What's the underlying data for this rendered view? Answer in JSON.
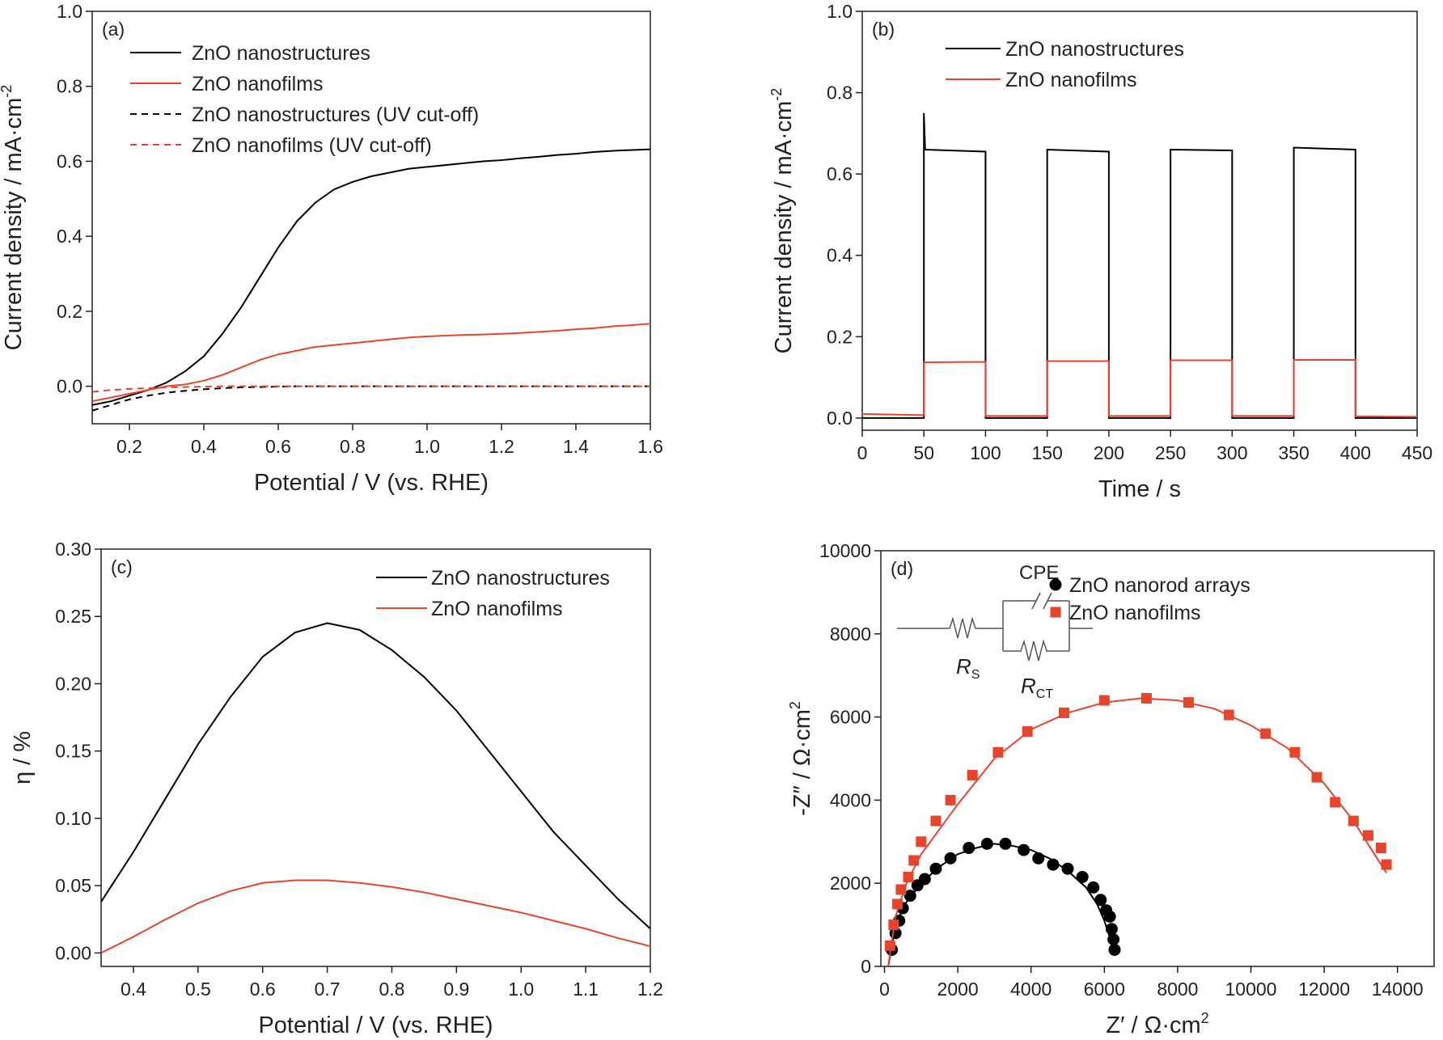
{
  "chart_data": [
    {
      "type": "line",
      "panel_label": "(a)",
      "xlabel": "Potential / V (vs. RHE)",
      "ylabel": "Current density / mA·cm",
      "ylabel_sup": "-2",
      "xlim": [
        0.1,
        1.6
      ],
      "ylim": [
        -0.1,
        1.0
      ],
      "xticks": [
        0.2,
        0.4,
        0.6,
        0.8,
        {
          "value": 1.0,
          "label": "1.0"
        },
        1.2,
        1.4,
        1.6
      ],
      "yticks": [
        {
          "value": 0,
          "label": "0.0"
        },
        0.2,
        0.4,
        0.6,
        0.8,
        {
          "value": 1.0,
          "label": "1.0"
        }
      ],
      "x": [
        0.1,
        0.15,
        0.2,
        0.25,
        0.3,
        0.35,
        0.4,
        0.45,
        0.5,
        0.55,
        0.6,
        0.65,
        0.7,
        0.75,
        0.8,
        0.85,
        0.9,
        0.95,
        1.0,
        1.05,
        1.1,
        1.15,
        1.2,
        1.25,
        1.3,
        1.35,
        1.4,
        1.45,
        1.5,
        1.55,
        1.6
      ],
      "series": [
        {
          "name": "ZnO nanostructures",
          "color": "#000000",
          "dashed": false,
          "values": [
            -0.05,
            -0.04,
            -0.025,
            -0.01,
            0.01,
            0.04,
            0.08,
            0.14,
            0.21,
            0.29,
            0.37,
            0.44,
            0.49,
            0.525,
            0.545,
            0.56,
            0.57,
            0.58,
            0.585,
            0.59,
            0.595,
            0.6,
            0.603,
            0.608,
            0.612,
            0.617,
            0.62,
            0.625,
            0.628,
            0.63,
            0.632
          ]
        },
        {
          "name": "ZnO nanofilms",
          "color": "#e8442c",
          "dashed": false,
          "values": [
            -0.04,
            -0.03,
            -0.02,
            -0.01,
            0,
            0.005,
            0.015,
            0.03,
            0.05,
            0.07,
            0.085,
            0.095,
            0.105,
            0.11,
            0.115,
            0.12,
            0.125,
            0.13,
            0.133,
            0.135,
            0.137,
            0.138,
            0.14,
            0.142,
            0.145,
            0.148,
            0.152,
            0.155,
            0.16,
            0.163,
            0.167
          ]
        },
        {
          "name": "ZnO nanostructures (UV cut-off)",
          "color": "#000000",
          "dashed": true,
          "values": [
            -0.065,
            -0.05,
            -0.035,
            -0.025,
            -0.017,
            -0.012,
            -0.008,
            -0.005,
            -0.003,
            -0.002,
            -0.001,
            0,
            0,
            0,
            0,
            0,
            0,
            0,
            0,
            0,
            0,
            0,
            0,
            0,
            0,
            0,
            0,
            0,
            0,
            0,
            0
          ]
        },
        {
          "name": "ZnO nanofilms (UV cut-off)",
          "color": "#e8442c",
          "dashed": true,
          "values": [
            -0.015,
            -0.01,
            -0.007,
            -0.005,
            -0.003,
            -0.002,
            -0.001,
            0,
            0,
            0,
            0,
            0,
            0,
            0,
            0,
            0,
            0,
            0,
            0,
            0,
            0,
            0,
            0,
            0,
            0,
            0,
            0,
            0,
            0,
            0,
            0
          ]
        }
      ]
    },
    {
      "type": "line",
      "panel_label": "(b)",
      "xlabel": "Time / s",
      "ylabel": "Current density / mA·cm",
      "ylabel_sup": "-2",
      "xlim": [
        0,
        450
      ],
      "ylim": [
        -0.03,
        1.0
      ],
      "xticks": [
        0,
        50,
        100,
        150,
        200,
        250,
        300,
        350,
        400,
        450
      ],
      "yticks": [
        {
          "value": 0,
          "label": "0.0"
        },
        0.2,
        0.4,
        0.6,
        0.8,
        {
          "value": 1.0,
          "label": "1.0"
        }
      ],
      "x": [
        0,
        50,
        50,
        51,
        100,
        100,
        150,
        150,
        200,
        200,
        250,
        250,
        300,
        300,
        350,
        350,
        400,
        400,
        450
      ],
      "series": [
        {
          "name": "ZnO nanostructures",
          "color": "#000000",
          "dashed": false,
          "values": [
            0,
            0,
            0.75,
            0.66,
            0.655,
            0,
            0,
            0.66,
            0.655,
            0,
            0,
            0.66,
            0.658,
            0,
            0,
            0.665,
            0.66,
            0,
            0
          ]
        },
        {
          "name": "ZnO nanofilms",
          "color": "#e8442c",
          "dashed": false,
          "values": [
            0.01,
            0.007,
            0.137,
            0.137,
            0.138,
            0.005,
            0.005,
            0.14,
            0.14,
            0.005,
            0.005,
            0.142,
            0.142,
            0.005,
            0.005,
            0.143,
            0.143,
            0.004,
            0.003
          ]
        }
      ]
    },
    {
      "type": "line",
      "panel_label": "(c)",
      "xlabel": "Potential / V (vs. RHE)",
      "ylabel": "η / %",
      "xlim": [
        0.35,
        1.2
      ],
      "ylim": [
        -0.01,
        0.3
      ],
      "xticks": [
        0.4,
        0.5,
        0.6,
        0.7,
        0.8,
        0.9,
        {
          "value": 1.0,
          "label": "1.0"
        },
        1.1,
        1.2
      ],
      "yticks": [
        {
          "value": 0,
          "label": "0.00"
        },
        0.05,
        {
          "value": 0.1,
          "label": "0.10"
        },
        0.15,
        {
          "value": 0.2,
          "label": "0.20"
        },
        0.25,
        {
          "value": 0.3,
          "label": "0.30"
        }
      ],
      "x": [
        0.35,
        0.4,
        0.45,
        0.5,
        0.55,
        0.6,
        0.65,
        0.7,
        0.75,
        0.8,
        0.85,
        0.9,
        0.95,
        1.0,
        1.05,
        1.1,
        1.15,
        1.2
      ],
      "series": [
        {
          "name": "ZnO nanostructures",
          "color": "#000000",
          "dashed": false,
          "values": [
            0.038,
            0.075,
            0.115,
            0.155,
            0.19,
            0.22,
            0.238,
            0.245,
            0.24,
            0.225,
            0.205,
            0.18,
            0.15,
            0.12,
            0.09,
            0.065,
            0.04,
            0.018
          ]
        },
        {
          "name": "ZnO nanofilms",
          "color": "#e8442c",
          "dashed": false,
          "values": [
            0,
            0.012,
            0.025,
            0.037,
            0.046,
            0.052,
            0.054,
            0.054,
            0.052,
            0.049,
            0.045,
            0.04,
            0.035,
            0.03,
            0.024,
            0.018,
            0.011,
            0.005
          ]
        }
      ]
    },
    {
      "type": "scatter",
      "panel_label": "(d)",
      "xlabel": "Z′ / Ω·cm",
      "xlabel_sup": "2",
      "ylabel": "-Z″ / Ω·cm",
      "ylabel_sup": "2",
      "xlim": [
        -100,
        15000
      ],
      "ylim": [
        0,
        10000
      ],
      "xticks": [
        0,
        2000,
        4000,
        6000,
        8000,
        10000,
        12000,
        14000
      ],
      "yticks": [
        0,
        2000,
        4000,
        6000,
        8000,
        10000
      ],
      "inset": {
        "cpe": "CPE",
        "rs": "R",
        "rs_sub": "S",
        "rct": "R",
        "rct_sub": "CT"
      },
      "series": [
        {
          "name": "ZnO nanorod arrays",
          "color": "#000000",
          "marker": "circle",
          "x": [
            200,
            300,
            400,
            500,
            700,
            900,
            1100,
            1400,
            1800,
            2300,
            2800,
            3300,
            3800,
            4200,
            4600,
            5000,
            5400,
            5700,
            5900,
            6050,
            6150,
            6200,
            6250,
            6280
          ],
          "values": [
            400,
            800,
            1100,
            1400,
            1700,
            1950,
            2100,
            2350,
            2600,
            2850,
            2950,
            2950,
            2800,
            2600,
            2450,
            2350,
            2150,
            1900,
            1600,
            1350,
            1200,
            900,
            650,
            400
          ],
          "fit_x": [
            100,
            300,
            600,
            1000,
            1500,
            2000,
            2500,
            3000,
            3500,
            4000,
            4500,
            5000,
            5500,
            5800,
            6000,
            6150
          ],
          "fit_values": [
            0,
            1000,
            1550,
            2000,
            2400,
            2700,
            2850,
            2950,
            2900,
            2800,
            2600,
            2300,
            1900,
            1500,
            1100,
            700
          ]
        },
        {
          "name": "ZnO nanofilms",
          "color": "#e8442c",
          "marker": "square",
          "x": [
            150,
            250,
            350,
            450,
            650,
            800,
            1000,
            1400,
            1800,
            2400,
            3100,
            3900,
            4900,
            6000,
            7150,
            8300,
            9400,
            10400,
            11200,
            11800,
            12300,
            12800,
            13200,
            13550,
            13700
          ],
          "values": [
            500,
            1000,
            1500,
            1850,
            2150,
            2550,
            3000,
            3500,
            4000,
            4600,
            5150,
            5650,
            6100,
            6400,
            6450,
            6350,
            6050,
            5600,
            5150,
            4550,
            3950,
            3500,
            3150,
            2850,
            2450
          ],
          "fit_x": [
            100,
            300,
            600,
            1000,
            2000,
            3000,
            4000,
            5000,
            6000,
            7000,
            8000,
            9000,
            10000,
            11000,
            12000,
            12800,
            13300,
            13700
          ],
          "fit_values": [
            0,
            1200,
            2000,
            2700,
            3900,
            5000,
            5700,
            6100,
            6350,
            6450,
            6400,
            6200,
            5800,
            5250,
            4400,
            3500,
            2800,
            2250
          ]
        }
      ]
    }
  ]
}
